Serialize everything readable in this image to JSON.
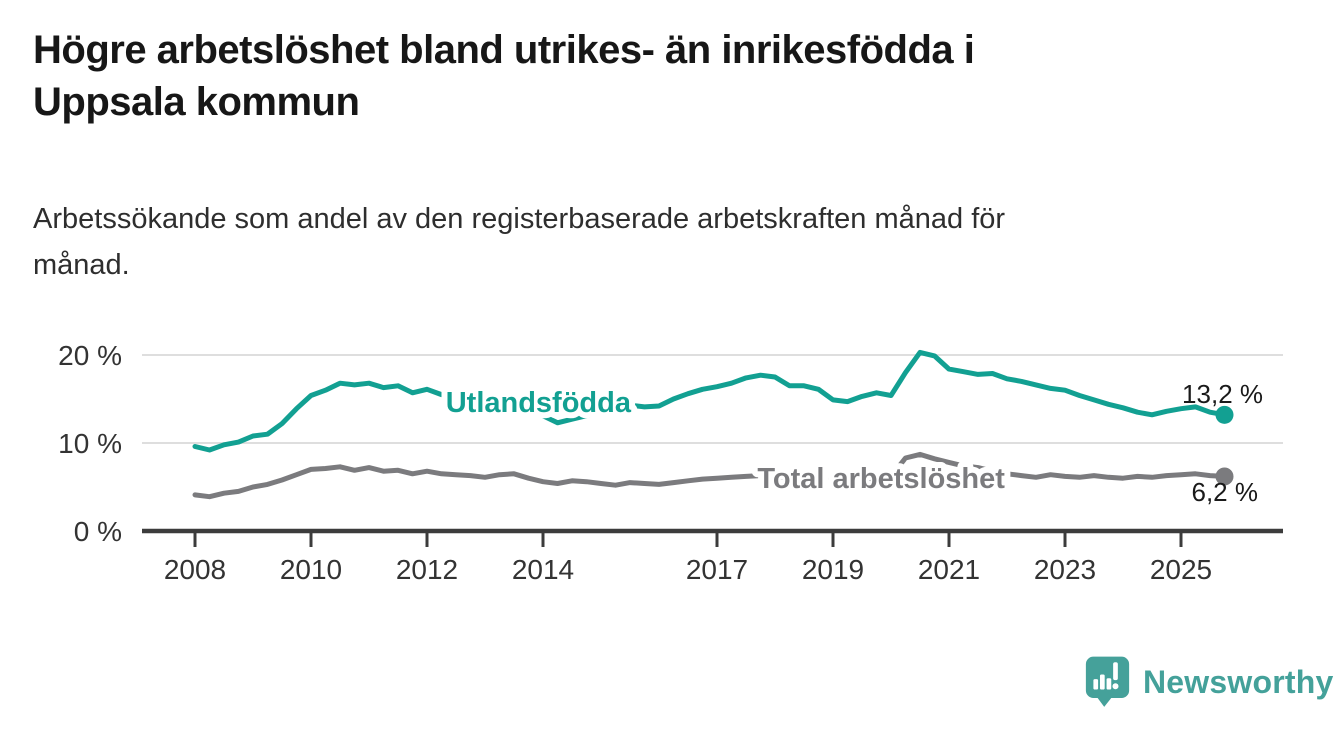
{
  "header": {
    "title": "Högre arbetslöshet bland utrikes- än inrikesfödda i Uppsala kommun",
    "title_lines": [
      "Högre arbetslöshet bland utrikes- än inrikesfödda i",
      "Uppsala kommun"
    ],
    "subtitle": "Arbetssökande som andel av den registerbaserade arbetskraften månad för månad.",
    "subtitle_lines": [
      "Arbetssökande som andel av den registerbaserade arbetskraften månad för",
      "månad."
    ]
  },
  "branding": {
    "logo_text": "Newsworthy",
    "logo_icon": "bar-chart-speech-bubble-icon",
    "logo_color": "#45a19a"
  },
  "colors": {
    "accent_teal": "#12a092",
    "neutral_gray": "#7b7b7e",
    "grid": "#dedede",
    "axis": "#3c3c3c",
    "tick_text": "#333333",
    "value_text": "#1a1a1a"
  },
  "chart_data": {
    "type": "line",
    "title": "Högre arbetslöshet bland utrikes- än inrikesfödda i Uppsala kommun",
    "subtitle": "Arbetssökande som andel av den registerbaserade arbetskraften månad för månad.",
    "xlabel": "",
    "ylabel": "",
    "grid": "horizontal",
    "legend_position": "inline-on-line",
    "xlim": [
      2007.1,
      2026.8
    ],
    "ylim": [
      0,
      21.5
    ],
    "x_ticks": [
      2008,
      2010,
      2012,
      2014,
      2017,
      2019,
      2021,
      2023,
      2025
    ],
    "y_ticks": [
      0,
      10,
      20
    ],
    "y_tick_labels": [
      "0 %",
      "10 %",
      "20 %"
    ],
    "x_start": 2008.0,
    "x_step": 0.25,
    "series": [
      {
        "name": "Utlandsfödda",
        "color": "#12a092",
        "end_value": 13.2,
        "end_label": "13,2 %",
        "label_at": {
          "x": 2013.92,
          "y": 13.5
        },
        "values": [
          9.6,
          9.2,
          9.8,
          10.1,
          10.8,
          11.0,
          12.2,
          13.9,
          15.4,
          16.0,
          16.8,
          16.6,
          16.8,
          16.3,
          16.5,
          15.7,
          16.1,
          15.5,
          15.9,
          15.3,
          15.2,
          14.8,
          14.2,
          13.6,
          13.1,
          12.3,
          12.7,
          13.1,
          13.4,
          13.9,
          14.3,
          14.1,
          14.2,
          15.0,
          15.6,
          16.1,
          16.4,
          16.8,
          17.4,
          17.7,
          17.5,
          16.5,
          16.5,
          16.1,
          14.9,
          14.7,
          15.3,
          15.7,
          15.4,
          18.0,
          20.3,
          19.9,
          18.4,
          18.1,
          17.8,
          17.9,
          17.3,
          17.0,
          16.6,
          16.2,
          16.0,
          15.4,
          14.9,
          14.4,
          14.0,
          13.5,
          13.2,
          13.6,
          13.9,
          14.1,
          13.5,
          13.2
        ]
      },
      {
        "name": "Total arbetslöshet",
        "color": "#7b7b7e",
        "end_value": 6.2,
        "end_label": "6,2 %",
        "label_at": {
          "x": 2019.83,
          "y": 4.9
        },
        "values": [
          4.1,
          3.9,
          4.3,
          4.5,
          5.0,
          5.3,
          5.8,
          6.4,
          7.0,
          7.1,
          7.3,
          6.9,
          7.2,
          6.8,
          6.9,
          6.5,
          6.8,
          6.5,
          6.4,
          6.3,
          6.1,
          6.4,
          6.5,
          6.0,
          5.6,
          5.4,
          5.7,
          5.6,
          5.4,
          5.2,
          5.5,
          5.4,
          5.3,
          5.5,
          5.7,
          5.9,
          6.0,
          6.1,
          6.2,
          6.3,
          6.2,
          6.0,
          6.1,
          5.9,
          5.7,
          5.6,
          5.8,
          5.9,
          6.2,
          8.3,
          8.7,
          8.2,
          7.8,
          7.4,
          7.2,
          6.8,
          6.5,
          6.3,
          6.1,
          6.4,
          6.2,
          6.1,
          6.3,
          6.1,
          6.0,
          6.2,
          6.1,
          6.3,
          6.4,
          6.5,
          6.3,
          6.2
        ]
      }
    ]
  }
}
